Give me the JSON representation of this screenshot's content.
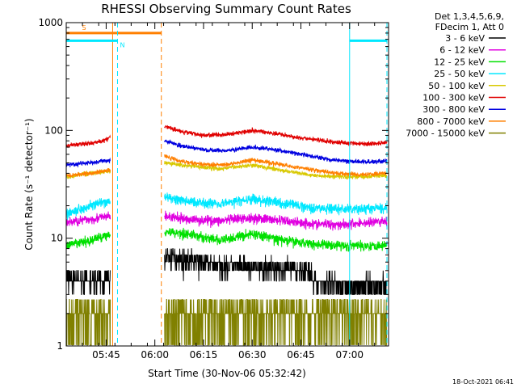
{
  "chart_data": {
    "type": "line",
    "title": "RHESSI Observing Summary Count Rates",
    "xlabel": "Start Time (30-Nov-06 05:32:42)",
    "ylabel": "Count Rate (s⁻¹ detector⁻¹)",
    "x_unit": "UT time (HH:MM)",
    "xlim": [
      "05:32:42",
      "07:12:00"
    ],
    "x_ticks": [
      "05:45",
      "06:00",
      "06:15",
      "06:30",
      "06:45",
      "07:00"
    ],
    "ylim": [
      1,
      1000
    ],
    "y_scale": "log",
    "y_ticks": [
      "1",
      "10",
      "100",
      "1000"
    ],
    "legend_header": [
      "Det 1,3,4,5,6,9,",
      "FDecim 1, Att 0"
    ],
    "legend_position": "top-right, outside plot",
    "timestamp": "18-Oct-2021 06:41",
    "data_gaps": [
      [
        "05:49",
        "06:02"
      ]
    ],
    "series": [
      {
        "name": "3 - 6 keV",
        "color": "#000000",
        "segments": [
          [
            [
              "05:32:42",
              4.2
            ],
            [
              "05:45:00",
              4.0
            ],
            [
              "05:46:20",
              4.3
            ]
          ],
          [
            [
              "06:03:00",
              6.8
            ],
            [
              "06:10:00",
              6.3
            ],
            [
              "06:20:00",
              5.6
            ],
            [
              "06:30:00",
              5.3
            ],
            [
              "06:40:00",
              5.2
            ],
            [
              "06:47:00",
              5.0
            ],
            [
              "06:49:00",
              4.0
            ],
            [
              "07:00:00",
              3.6
            ],
            [
              "07:11:30",
              3.7
            ]
          ]
        ]
      },
      {
        "name": "6 - 12 keV",
        "color": "#e000e0",
        "segments": [
          [
            [
              "05:32:42",
              14
            ],
            [
              "05:40:00",
              15
            ],
            [
              "05:46:20",
              16
            ]
          ],
          [
            [
              "06:03:00",
              16
            ],
            [
              "06:10:00",
              15
            ],
            [
              "06:20:00",
              14.5
            ],
            [
              "06:30:00",
              15.5
            ],
            [
              "06:40:00",
              14.5
            ],
            [
              "06:50:00",
              13.5
            ],
            [
              "07:00:00",
              13.5
            ],
            [
              "07:11:30",
              14.5
            ]
          ]
        ]
      },
      {
        "name": "12 - 25 keV",
        "color": "#00e000",
        "segments": [
          [
            [
              "05:32:42",
              8.5
            ],
            [
              "05:40:00",
              9.5
            ],
            [
              "05:46:20",
              11
            ]
          ],
          [
            [
              "06:03:00",
              11.5
            ],
            [
              "06:10:00",
              11
            ],
            [
              "06:20:00",
              9.5
            ],
            [
              "06:30:00",
              11
            ],
            [
              "06:40:00",
              9.5
            ],
            [
              "06:50:00",
              8.8
            ],
            [
              "07:00:00",
              8.5
            ],
            [
              "07:11:30",
              8.6
            ]
          ]
        ]
      },
      {
        "name": "25 - 50 keV",
        "color": "#00e8ff",
        "segments": [
          [
            [
              "05:32:42",
              17
            ],
            [
              "05:40:00",
              20
            ],
            [
              "05:46:20",
              22
            ]
          ],
          [
            [
              "06:03:00",
              24
            ],
            [
              "06:10:00",
              22
            ],
            [
              "06:20:00",
              21
            ],
            [
              "06:30:00",
              23
            ],
            [
              "06:40:00",
              21
            ],
            [
              "06:50:00",
              19
            ],
            [
              "07:00:00",
              18.5
            ],
            [
              "07:11:30",
              19
            ]
          ]
        ]
      },
      {
        "name": "50 - 100 keV",
        "color": "#d8c800",
        "segments": [
          [
            [
              "05:32:42",
              37
            ],
            [
              "05:40:00",
              40
            ],
            [
              "05:46:20",
              42
            ]
          ],
          [
            [
              "06:03:00",
              50
            ],
            [
              "06:10:00",
              47
            ],
            [
              "06:20:00",
              44
            ],
            [
              "06:30:00",
              48
            ],
            [
              "06:40:00",
              42
            ],
            [
              "06:50:00",
              38
            ],
            [
              "07:00:00",
              37
            ],
            [
              "07:11:30",
              38
            ]
          ]
        ]
      },
      {
        "name": "100 - 300 keV",
        "color": "#e00000",
        "segments": [
          [
            [
              "05:32:42",
              72
            ],
            [
              "05:40:00",
              76
            ],
            [
              "05:45:30",
              82
            ],
            [
              "05:46:20",
              88
            ]
          ],
          [
            [
              "06:03:00",
              110
            ],
            [
              "06:08:00",
              98
            ],
            [
              "06:15:00",
              90
            ],
            [
              "06:22:00",
              92
            ],
            [
              "06:30:00",
              100
            ],
            [
              "06:36:00",
              95
            ],
            [
              "06:45:00",
              85
            ],
            [
              "06:55:00",
              78
            ],
            [
              "07:05:00",
              75
            ],
            [
              "07:11:30",
              77
            ]
          ]
        ]
      },
      {
        "name": "300 - 800 keV",
        "color": "#0000e0",
        "segments": [
          [
            [
              "05:32:42",
              48
            ],
            [
              "05:40:00",
              50
            ],
            [
              "05:46:20",
              53
            ]
          ],
          [
            [
              "06:03:00",
              80
            ],
            [
              "06:08:00",
              72
            ],
            [
              "06:15:00",
              66
            ],
            [
              "06:22:00",
              65
            ],
            [
              "06:30:00",
              70
            ],
            [
              "06:36:00",
              67
            ],
            [
              "06:45:00",
              60
            ],
            [
              "06:55:00",
              53
            ],
            [
              "07:05:00",
              51
            ],
            [
              "07:11:30",
              52
            ]
          ]
        ]
      },
      {
        "name": "800 - 7000 keV",
        "color": "#ff7f00",
        "segments": [
          [
            [
              "05:32:42",
              38
            ],
            [
              "05:40:00",
              40
            ],
            [
              "05:46:20",
              43
            ]
          ],
          [
            [
              "06:03:00",
              58
            ],
            [
              "06:08:00",
              52
            ],
            [
              "06:15:00",
              48
            ],
            [
              "06:22:00",
              48
            ],
            [
              "06:30:00",
              53
            ],
            [
              "06:36:00",
              50
            ],
            [
              "06:45:00",
              45
            ],
            [
              "06:55:00",
              40
            ],
            [
              "07:05:00",
              39
            ],
            [
              "07:11:30",
              40
            ]
          ]
        ]
      },
      {
        "name": "7000 - 15000 keV",
        "color": "#808000",
        "segments": [
          [
            [
              "05:32:42",
              2.0
            ],
            [
              "05:40:00",
              2.1
            ],
            [
              "05:46:20",
              2.0
            ]
          ],
          [
            [
              "06:03:00",
              2.1
            ],
            [
              "06:10:00",
              1.9
            ],
            [
              "06:20:00",
              2.0
            ],
            [
              "06:30:00",
              2.1
            ],
            [
              "06:40:00",
              2.0
            ],
            [
              "06:50:00",
              1.9
            ],
            [
              "07:00:00",
              2.0
            ],
            [
              "07:11:30",
              2.0
            ]
          ]
        ]
      }
    ],
    "markers": [
      {
        "label": "S",
        "color": "#ff7f00",
        "bar": [
          "05:32:42",
          "06:02:00"
        ],
        "bar_y": 800,
        "lines": [
          {
            "t": "05:47:00",
            "style": "solid"
          },
          {
            "t": "06:02:00",
            "style": "dashed"
          }
        ]
      },
      {
        "label": "N",
        "color": "#00e8ff",
        "bar_y": 680,
        "bars": [
          [
            "05:32:42",
            "05:48:30"
          ],
          [
            "07:00:00",
            "07:11:30"
          ]
        ],
        "lines": [
          {
            "t": "05:48:30",
            "style": "dashed"
          },
          {
            "t": "07:00:00",
            "style": "solid"
          },
          {
            "t": "07:11:30",
            "style": "dashed"
          }
        ]
      }
    ]
  }
}
